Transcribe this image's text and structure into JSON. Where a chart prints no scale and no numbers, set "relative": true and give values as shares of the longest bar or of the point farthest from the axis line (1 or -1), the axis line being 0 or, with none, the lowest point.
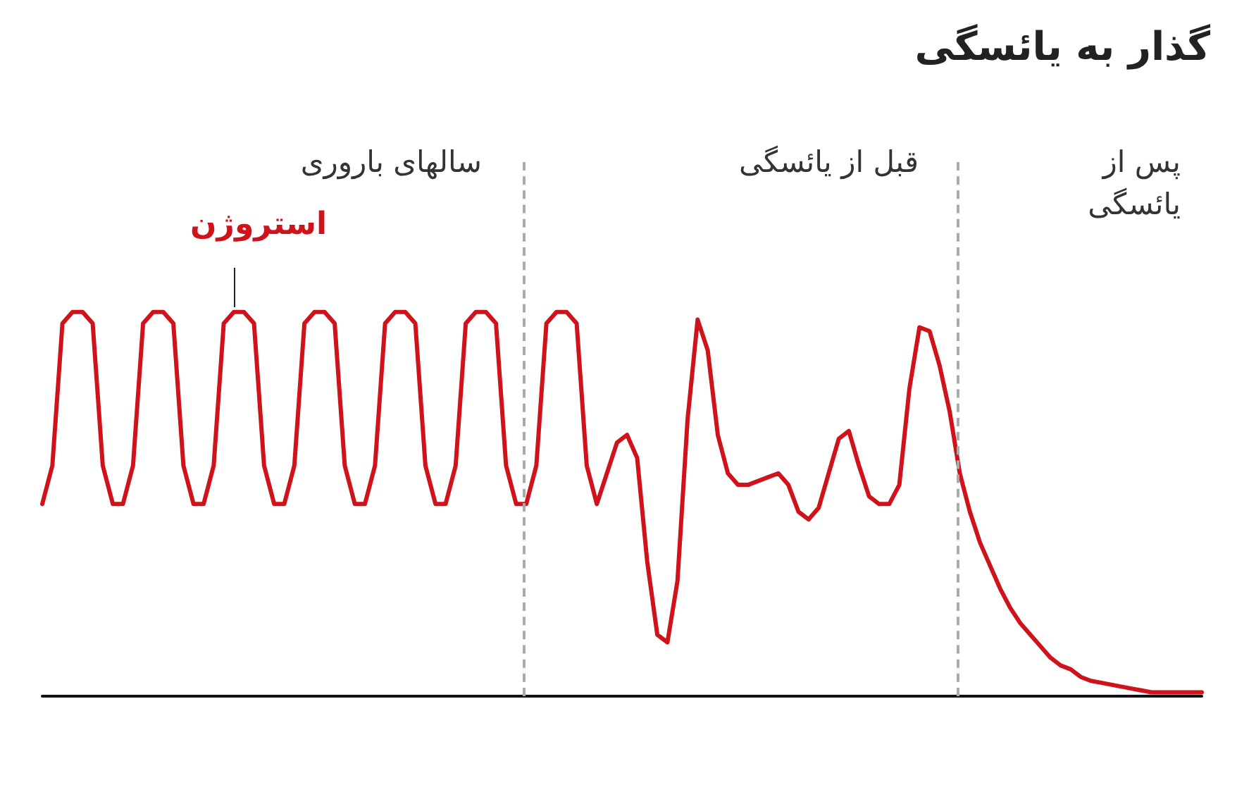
{
  "chart_data": {
    "type": "line",
    "title": "گذار به یائسگی",
    "relative": true,
    "grid": false,
    "legend": false,
    "line_style": "solid",
    "categories": [
      null,
      null,
      null,
      null,
      null,
      null,
      null,
      null,
      null,
      null,
      null,
      null,
      null,
      null,
      null,
      null,
      null,
      null,
      null,
      null,
      null,
      null,
      null,
      null,
      null,
      null,
      null,
      null,
      null,
      null,
      null,
      null,
      null,
      null,
      null,
      null,
      null,
      null,
      null,
      null,
      null,
      null,
      null,
      null,
      null,
      null,
      null,
      null,
      null,
      null,
      null,
      null,
      null,
      null,
      null,
      null,
      null,
      null,
      null,
      null,
      null,
      null,
      null,
      null,
      null,
      null,
      null,
      null,
      null,
      null,
      null,
      null,
      null,
      null,
      null,
      null,
      null,
      null,
      null,
      null,
      null,
      null,
      null,
      null,
      null,
      null,
      null,
      null,
      null,
      null,
      null,
      null,
      null,
      null,
      null,
      null,
      null,
      null,
      null,
      null,
      null,
      null,
      null,
      null,
      null,
      null,
      null,
      null,
      null,
      null,
      null,
      null,
      null,
      null,
      null,
      null
    ],
    "series": [
      {
        "name": "استروژن",
        "color": "#d0121b",
        "values": [
          0.5,
          0.6,
          0.97,
          1,
          1,
          0.97,
          0.6,
          0.5,
          0.5,
          0.6,
          0.97,
          1,
          1,
          0.97,
          0.6,
          0.5,
          0.5,
          0.6,
          0.97,
          1,
          1,
          0.97,
          0.6,
          0.5,
          0.5,
          0.6,
          0.97,
          1,
          1,
          0.97,
          0.6,
          0.5,
          0.5,
          0.6,
          0.97,
          1,
          1,
          0.97,
          0.6,
          0.5,
          0.5,
          0.6,
          0.97,
          1,
          1,
          0.97,
          0.6,
          0.5,
          0.5,
          0.6,
          0.97,
          1,
          1,
          0.97,
          0.6,
          0.5,
          0.58,
          0.66,
          0.68,
          0.62,
          0.35,
          0.16,
          0.14,
          0.3,
          0.72,
          0.98,
          0.9,
          0.68,
          0.58,
          0.55,
          0.55,
          0.56,
          0.57,
          0.58,
          0.55,
          0.48,
          0.46,
          0.49,
          0.58,
          0.67,
          0.69,
          0.6,
          0.52,
          0.5,
          0.5,
          0.55,
          0.8,
          0.96,
          0.95,
          0.86,
          0.74,
          0.58,
          0.48,
          0.4,
          0.34,
          0.28,
          0.23,
          0.19,
          0.16,
          0.13,
          0.1,
          0.08,
          0.07,
          0.05,
          0.04,
          0.035,
          0.03,
          0.025,
          0.02,
          0.015,
          0.01,
          0.01,
          0.01,
          0.01,
          0.01,
          0.01
        ]
      }
    ],
    "annotations": [
      "سالهای باروری",
      "قبل از یائسگی",
      "پس از یائسگی"
    ]
  }
}
